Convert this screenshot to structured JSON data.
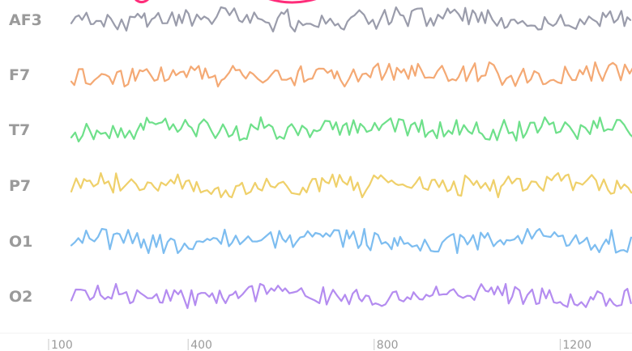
{
  "chart_data": {
    "type": "line",
    "x_ticks": [
      100,
      400,
      800,
      1200
    ],
    "xlim": [
      100,
      1350
    ],
    "series": [
      {
        "name": "AF3",
        "color": "#9a9cab"
      },
      {
        "name": "F7",
        "color": "#f4a974"
      },
      {
        "name": "T7",
        "color": "#6ee08a"
      },
      {
        "name": "P7",
        "color": "#efd06a"
      },
      {
        "name": "O1",
        "color": "#7dbdf0"
      },
      {
        "name": "O2",
        "color": "#b48cf0"
      }
    ],
    "grid": false,
    "legend": "none"
  },
  "header_accent_color": "#ff2d7a"
}
